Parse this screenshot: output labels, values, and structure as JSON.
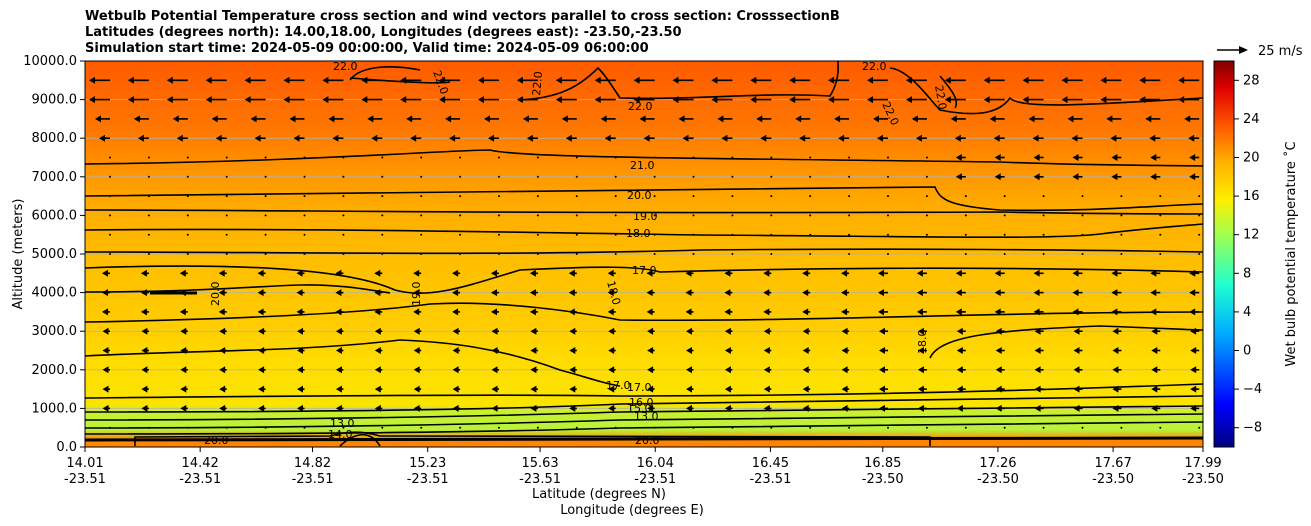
{
  "chart_data": {
    "type": "contour",
    "title_lines": [
      "Wetbulb Potential Temperature cross section and wind vectors parallel to cross section: CrosssectionB",
      "Latitudes (degrees north): 14.00,18.00, Longitudes (degrees east): -23.50,-23.50",
      "Simulation start time: 2024-05-09 00:00:00, Valid time: 2024-05-09 06:00:00"
    ],
    "ylabel": "Altitude (meters)",
    "xlabel_lat": "Latitude (degrees N)",
    "xlabel_lon": "Longitude (degrees E)",
    "ylim": [
      0,
      10000
    ],
    "yticks": [
      "0.0",
      "1000.0",
      "2000.0",
      "3000.0",
      "4000.0",
      "5000.0",
      "6000.0",
      "7000.0",
      "8000.0",
      "9000.0",
      "10000.0"
    ],
    "xticks": [
      {
        "lat": "14.01",
        "lon": "-23.51"
      },
      {
        "lat": "14.42",
        "lon": "-23.51"
      },
      {
        "lat": "14.82",
        "lon": "-23.51"
      },
      {
        "lat": "15.23",
        "lon": "-23.51"
      },
      {
        "lat": "15.63",
        "lon": "-23.51"
      },
      {
        "lat": "16.04",
        "lon": "-23.51"
      },
      {
        "lat": "16.45",
        "lon": "-23.51"
      },
      {
        "lat": "16.85",
        "lon": "-23.50"
      },
      {
        "lat": "17.26",
        "lon": "-23.50"
      },
      {
        "lat": "17.67",
        "lon": "-23.50"
      },
      {
        "lat": "17.99",
        "lon": "-23.50"
      }
    ],
    "contour_labels": [
      "22.0",
      "21.0",
      "20.0",
      "19.0",
      "18.0",
      "17.0",
      "16.0",
      "15.0",
      "13.0",
      "14.0"
    ],
    "colorbar": {
      "label": "Wet bulb potential temperature ˚C",
      "ticks": [
        "−8",
        "−4",
        "0",
        "4",
        "8",
        "12",
        "16",
        "20",
        "24",
        "28"
      ],
      "range": [
        -10,
        30
      ]
    },
    "quiver_key": "25 m/s",
    "wind": "mostly westward (easterly winds), strongest near 9000 m",
    "grid": true
  }
}
